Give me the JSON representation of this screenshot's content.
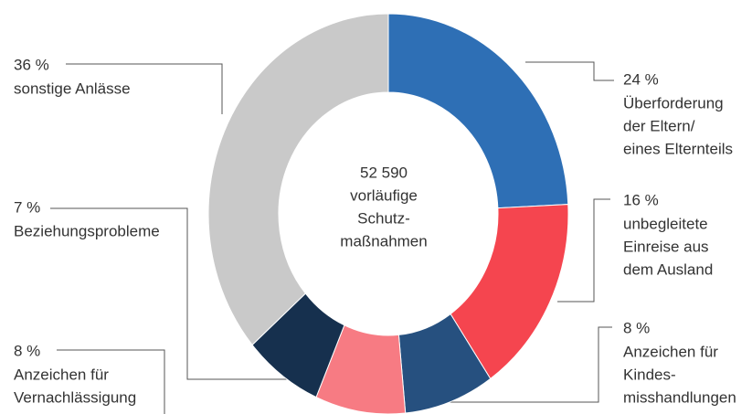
{
  "chart_data": {
    "type": "donut",
    "center_text": [
      "52 590",
      "vorläufige",
      "Schutz-",
      "maßnahmen"
    ],
    "categories": [
      [
        "Überforderung",
        "der Eltern/",
        "eines Elternteils"
      ],
      [
        "unbegleitete",
        "Einreise aus",
        "dem Ausland"
      ],
      [
        "Anzeichen für",
        "Kindes-",
        "misshandlungen"
      ],
      [
        "Anzeichen für",
        "Vernachlässigung"
      ],
      [
        "Beziehungsprobleme"
      ],
      [
        "sonstige Anlässe"
      ]
    ],
    "values": [
      24,
      16,
      8,
      8,
      7,
      36
    ],
    "value_labels": [
      "24 %",
      "16 %",
      "8 %",
      "8 %",
      "7 %",
      "36 %"
    ],
    "colors": [
      "#2e6fb5",
      "#f5454f",
      "#26507f",
      "#f77b83",
      "#16304e",
      "#c9c9c9"
    ]
  }
}
